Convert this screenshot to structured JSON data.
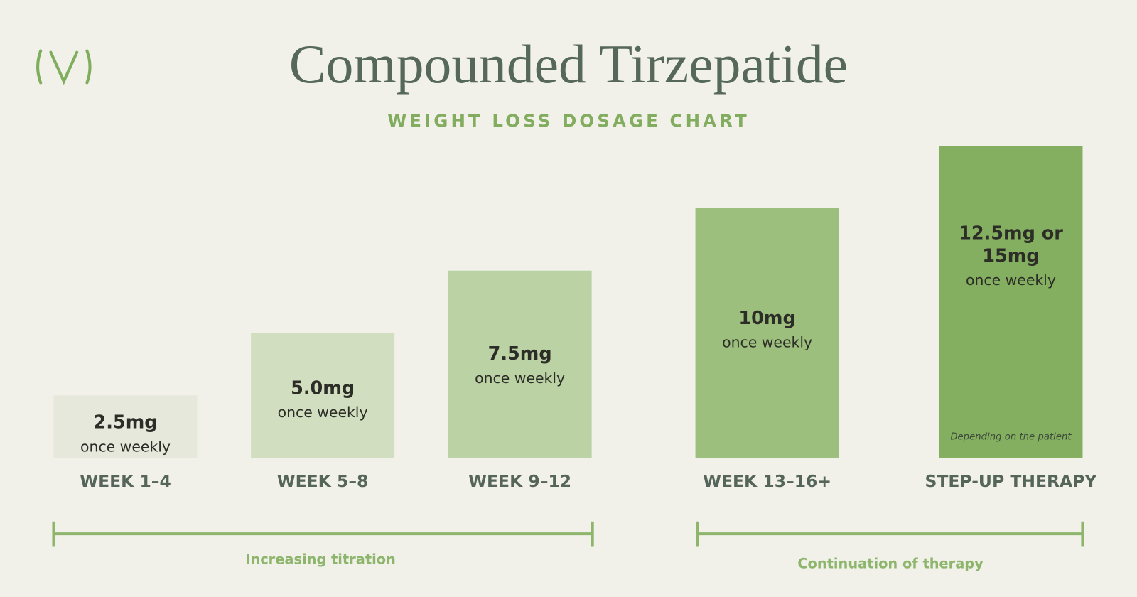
{
  "chart_data": {
    "type": "bar",
    "title": "Compounded Tirzepatide",
    "subtitle": "WEIGHT LOSS DOSAGE CHART",
    "categories": [
      "WEEK 1–4",
      "WEEK 5–8",
      "WEEK 9–12",
      "WEEK 13–16+",
      "STEP-UP THERAPY"
    ],
    "values": [
      2.5,
      5.0,
      7.5,
      10,
      12.5
    ],
    "value_labels": [
      "2.5mg",
      "5.0mg",
      "7.5mg",
      "10mg",
      "12.5mg or 15mg"
    ],
    "sublabels": [
      "once weekly",
      "once weekly",
      "once weekly",
      "once weekly",
      "once weekly"
    ],
    "colors": [
      "#e6e8dc",
      "#d1dfc0",
      "#bbd3a4",
      "#9dbf7d",
      "#84af60"
    ],
    "note": "Depending on the patient",
    "groups": [
      {
        "label": "Increasing titration"
      },
      {
        "label": "Continuation of therapy"
      }
    ]
  }
}
